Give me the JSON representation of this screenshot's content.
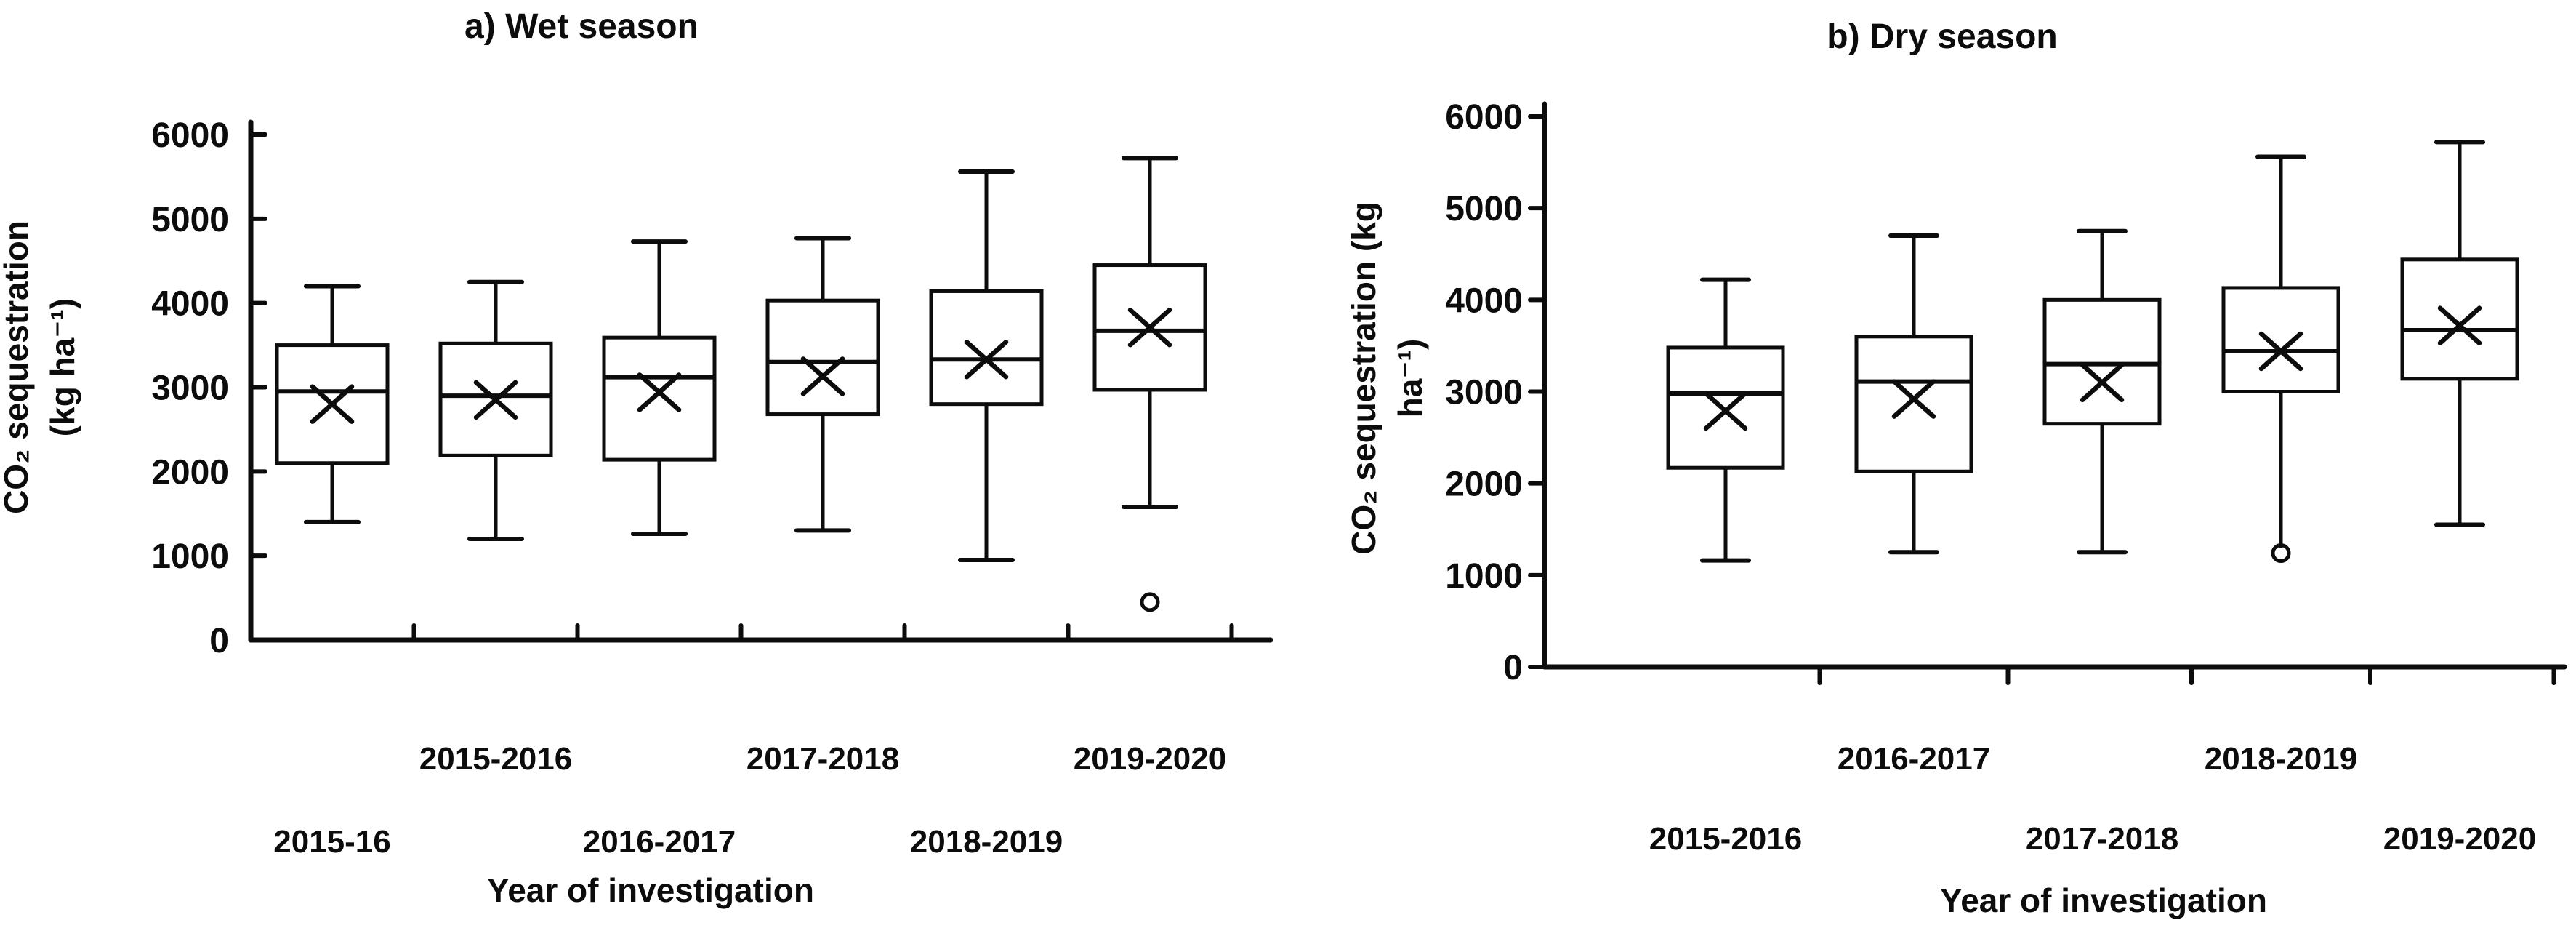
{
  "figure": {
    "background": "#ffffff",
    "ink_color": "#0c0c0c",
    "description": "Two box-and-whisker panels of CO2 sequestration by year of investigation"
  },
  "chart_data": [
    {
      "type": "box",
      "title": "a) Wet season",
      "ylabel_lines": [
        "CO₂ sequestration",
        "(kg ha⁻¹)"
      ],
      "xlabel": "Year of investigation",
      "ylim": [
        0,
        6000
      ],
      "yticks": [
        0,
        1000,
        2000,
        3000,
        4000,
        5000,
        6000
      ],
      "grid": false,
      "legend": "none",
      "categories": [
        "2015-16",
        "2015-2016",
        "2016-2017",
        "2017-2018",
        "2018-2019",
        "2019-2020"
      ],
      "label_row": [
        1,
        0,
        1,
        0,
        1,
        0
      ],
      "boxes": [
        {
          "category": "2015-16",
          "min": 1400,
          "q1": 2100,
          "median": 2950,
          "mean": 2800,
          "q3": 3500,
          "max": 4200,
          "outliers": [],
          "min_cap": true
        },
        {
          "category": "2015-2016",
          "min": 1200,
          "q1": 2190,
          "median": 2900,
          "mean": 2850,
          "q3": 3520,
          "max": 4250,
          "outliers": [],
          "min_cap": true
        },
        {
          "category": "2016-2017",
          "min": 1260,
          "q1": 2140,
          "median": 3120,
          "mean": 2940,
          "q3": 3590,
          "max": 4730,
          "outliers": [],
          "min_cap": true
        },
        {
          "category": "2017-2018",
          "min": 1300,
          "q1": 2680,
          "median": 3300,
          "mean": 3130,
          "q3": 4030,
          "max": 4770,
          "outliers": [],
          "min_cap": true
        },
        {
          "category": "2018-2019",
          "min": 950,
          "q1": 2800,
          "median": 3330,
          "mean": 3330,
          "q3": 4140,
          "max": 5560,
          "outliers": [],
          "min_cap": true
        },
        {
          "category": "2019-2020",
          "min": 1580,
          "q1": 2970,
          "median": 3670,
          "mean": 3710,
          "q3": 4450,
          "max": 5720,
          "outliers": [
            450
          ],
          "min_cap": true
        }
      ]
    },
    {
      "type": "box",
      "title": "b) Dry season",
      "ylabel_lines": [
        "CO₂ sequestration (kg",
        "ha⁻¹)"
      ],
      "xlabel": "Year of investigation",
      "ylim": [
        0,
        6000
      ],
      "yticks": [
        0,
        1000,
        2000,
        3000,
        4000,
        5000,
        6000
      ],
      "grid": false,
      "legend": "none",
      "categories": [
        "2015-2016",
        "2016-2017",
        "2017-2018",
        "2018-2019",
        "2019-2020"
      ],
      "label_row": [
        1,
        0,
        1,
        0,
        1
      ],
      "boxes": [
        {
          "category": "2015-2016",
          "min": 1160,
          "q1": 2170,
          "median": 2980,
          "mean": 2790,
          "q3": 3480,
          "max": 4220,
          "outliers": [],
          "min_cap": true
        },
        {
          "category": "2016-2017",
          "min": 1250,
          "q1": 2130,
          "median": 3110,
          "mean": 2920,
          "q3": 3600,
          "max": 4700,
          "outliers": [],
          "min_cap": true
        },
        {
          "category": "2017-2018",
          "min": 1250,
          "q1": 2650,
          "median": 3300,
          "mean": 3100,
          "q3": 4000,
          "max": 4750,
          "outliers": [],
          "min_cap": true
        },
        {
          "category": "2018-2019",
          "min": 1300,
          "q1": 3000,
          "median": 3440,
          "mean": 3440,
          "q3": 4130,
          "max": 5560,
          "outliers": [
            1240
          ],
          "min_cap": false
        },
        {
          "category": "2019-2020",
          "min": 1550,
          "q1": 3140,
          "median": 3670,
          "mean": 3720,
          "q3": 4440,
          "max": 5720,
          "outliers": [],
          "min_cap": true
        }
      ]
    }
  ]
}
